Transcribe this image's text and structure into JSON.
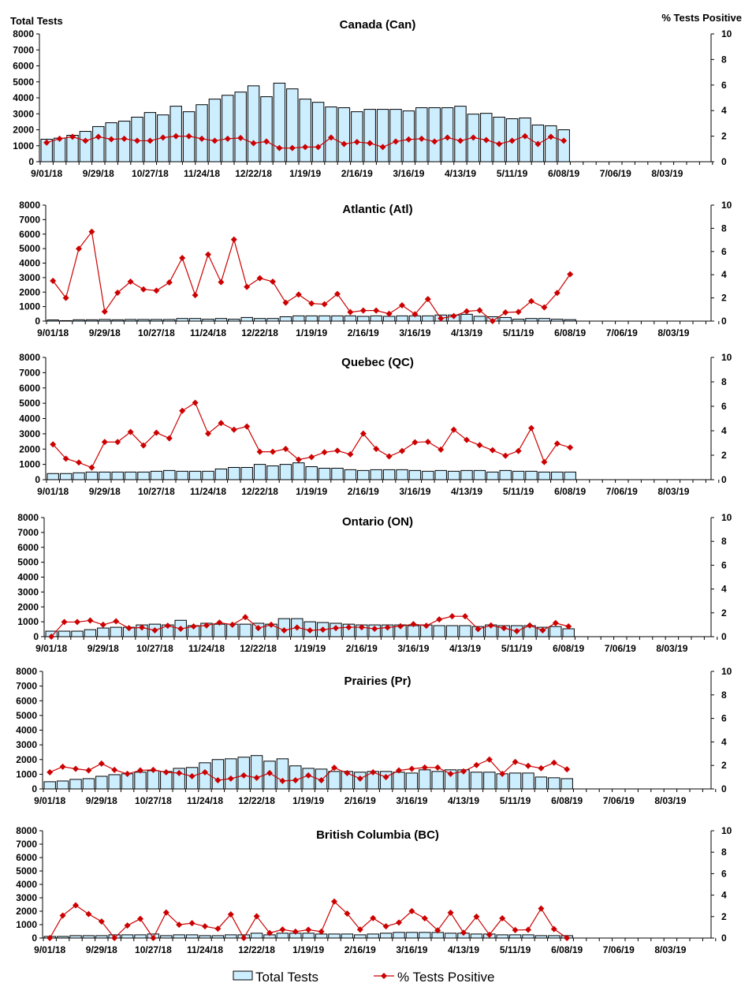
{
  "left_axis_title": "Total Tests",
  "right_axis_title": "% Tests Positive",
  "legend": {
    "bars": "Total Tests",
    "line": "% Tests Positive"
  },
  "colors": {
    "bar_fill": "#cceeff",
    "bar_stroke": "#000000",
    "line": "#cc0000"
  },
  "x_tick_labels": [
    "9/01/18",
    "9/29/18",
    "10/27/18",
    "11/24/18",
    "12/22/18",
    "1/19/19",
    "2/16/19",
    "3/16/19",
    "4/13/19",
    "5/11/19",
    "6/08/19",
    "7/06/19",
    "8/03/19"
  ],
  "weeks": [
    "9/01/18",
    "9/08/18",
    "9/15/18",
    "9/22/18",
    "9/29/18",
    "10/06/18",
    "10/13/18",
    "10/20/18",
    "10/27/18",
    "11/03/18",
    "11/10/18",
    "11/17/18",
    "11/24/18",
    "12/01/18",
    "12/08/18",
    "12/15/18",
    "12/22/18",
    "12/29/18",
    "1/05/19",
    "1/12/19",
    "1/19/19",
    "1/26/19",
    "2/02/19",
    "2/09/19",
    "2/16/19",
    "2/23/19",
    "3/02/19",
    "3/09/19",
    "3/16/19",
    "3/23/19",
    "3/30/19",
    "4/06/19",
    "4/13/19",
    "4/20/19",
    "4/27/19",
    "5/04/19",
    "5/11/19",
    "5/18/19",
    "5/25/19",
    "6/01/19",
    "6/08/19"
  ],
  "chart_data": [
    {
      "type": "bar+line",
      "title": "Canada (Can)",
      "ylim": [
        0,
        8000
      ],
      "ylim_right": [
        0,
        10
      ],
      "left_ticks": [
        "0",
        "1000",
        "2000",
        "3000",
        "4000",
        "5000",
        "6000",
        "7000",
        "8000"
      ],
      "right_ticks": [
        "0",
        "2",
        "4",
        "6",
        "8",
        "10"
      ],
      "series": [
        {
          "name": "Total Tests",
          "type": "bar",
          "values": [
            1410,
            1475,
            1655,
            1900,
            2200,
            2440,
            2540,
            2790,
            3080,
            2930,
            3475,
            3130,
            3570,
            3920,
            4160,
            4360,
            4750,
            4070,
            4920,
            4560,
            3920,
            3720,
            3430,
            3380,
            3130,
            3280,
            3280,
            3280,
            3180,
            3380,
            3380,
            3380,
            3475,
            2980,
            3030,
            2790,
            2690,
            2740,
            2300,
            2250,
            2000
          ]
        },
        {
          "name": "% Tests Positive",
          "type": "line",
          "values": [
            1.5,
            1.8,
            1.95,
            1.64,
            1.95,
            1.76,
            1.8,
            1.64,
            1.64,
            1.89,
            2.0,
            2.0,
            1.8,
            1.64,
            1.8,
            1.86,
            1.45,
            1.58,
            1.07,
            1.07,
            1.15,
            1.15,
            1.89,
            1.39,
            1.54,
            1.45,
            1.15,
            1.58,
            1.74,
            1.8,
            1.58,
            1.89,
            1.64,
            1.89,
            1.7,
            1.39,
            1.64,
            2.0,
            1.39,
            1.95,
            1.64
          ]
        }
      ]
    },
    {
      "type": "bar+line",
      "title": "Atlantic (Atl)",
      "ylim": [
        0,
        8000
      ],
      "ylim_right": [
        0,
        10
      ],
      "left_ticks": [
        "0",
        "1000",
        "2000",
        "3000",
        "4000",
        "5000",
        "6000",
        "7000",
        "8000"
      ],
      "right_ticks": [
        "0",
        "2",
        "4",
        "6",
        "8",
        "10"
      ],
      "series": [
        {
          "name": "Total Tests",
          "type": "bar",
          "values": [
            80,
            30,
            90,
            90,
            110,
            90,
            110,
            110,
            110,
            110,
            180,
            180,
            130,
            180,
            130,
            250,
            180,
            180,
            300,
            360,
            360,
            360,
            360,
            360,
            330,
            360,
            330,
            360,
            360,
            360,
            420,
            420,
            470,
            330,
            300,
            250,
            130,
            180,
            180,
            130,
            100
          ]
        },
        {
          "name": "% Tests Positive",
          "type": "line",
          "values": [
            3.47,
            2.0,
            6.24,
            7.7,
            0.82,
            2.45,
            3.4,
            2.74,
            2.63,
            3.33,
            5.44,
            2.24,
            5.74,
            3.36,
            7.03,
            2.95,
            3.7,
            3.4,
            1.59,
            2.29,
            1.52,
            1.45,
            2.34,
            0.77,
            0.91,
            0.91,
            0.63,
            1.36,
            0.59,
            1.9,
            0.23,
            0.43,
            0.84,
            0.93,
            0.0,
            0.75,
            0.79,
            1.72,
            1.18,
            2.43,
            4.04
          ]
        }
      ]
    },
    {
      "type": "bar+line",
      "title": "Quebec (QC)",
      "ylim": [
        0,
        8000
      ],
      "ylim_right": [
        0,
        10
      ],
      "left_ticks": [
        "0",
        "1000",
        "2000",
        "3000",
        "4000",
        "5000",
        "6000",
        "7000",
        "8000"
      ],
      "right_ticks": [
        "0",
        "2",
        "4",
        "6",
        "8",
        "10"
      ],
      "series": [
        {
          "name": "Total Tests",
          "type": "bar",
          "values": [
            400,
            400,
            450,
            500,
            500,
            500,
            500,
            500,
            550,
            600,
            550,
            550,
            550,
            700,
            800,
            800,
            1000,
            900,
            1000,
            1100,
            850,
            750,
            750,
            650,
            600,
            650,
            650,
            650,
            600,
            550,
            600,
            550,
            600,
            600,
            500,
            600,
            550,
            550,
            500,
            500,
            500
          ]
        },
        {
          "name": "% Tests Positive",
          "type": "line",
          "values": [
            2.89,
            1.72,
            1.4,
            0.99,
            3.08,
            3.08,
            3.9,
            2.8,
            3.84,
            3.38,
            5.63,
            6.29,
            3.77,
            4.63,
            4.09,
            4.35,
            2.28,
            2.28,
            2.52,
            1.64,
            1.85,
            2.24,
            2.37,
            2.07,
            3.77,
            2.52,
            1.9,
            2.35,
            3.06,
            3.1,
            2.46,
            4.09,
            3.25,
            2.82,
            2.41,
            1.96,
            2.35,
            4.22,
            1.44,
            2.95,
            2.63
          ]
        }
      ]
    },
    {
      "type": "bar+line",
      "title": "Ontario (ON)",
      "ylim": [
        0,
        8000
      ],
      "ylim_right": [
        0,
        10
      ],
      "left_ticks": [
        "0",
        "1000",
        "2000",
        "3000",
        "4000",
        "5000",
        "6000",
        "7000",
        "8000"
      ],
      "right_ticks": [
        "0",
        "2",
        "4",
        "6",
        "8",
        "10"
      ],
      "series": [
        {
          "name": "Total Tests",
          "type": "bar",
          "values": [
            370,
            370,
            370,
            470,
            580,
            630,
            630,
            790,
            840,
            790,
            1100,
            740,
            900,
            840,
            840,
            840,
            900,
            840,
            1210,
            1210,
            1000,
            950,
            900,
            840,
            790,
            790,
            790,
            790,
            740,
            790,
            740,
            740,
            740,
            680,
            790,
            740,
            740,
            740,
            630,
            680,
            530
          ]
        },
        {
          "name": "% Tests Positive",
          "type": "line",
          "values": [
            0.0,
            1.23,
            1.23,
            1.36,
            1.0,
            1.29,
            0.72,
            0.77,
            0.53,
            0.92,
            0.66,
            0.86,
            0.94,
            1.18,
            1.0,
            1.64,
            0.72,
            1.0,
            0.53,
            0.77,
            0.53,
            0.59,
            0.72,
            0.79,
            0.79,
            0.66,
            0.77,
            0.88,
            1.05,
            0.92,
            1.45,
            1.71,
            1.71,
            0.64,
            0.94,
            0.72,
            0.46,
            0.94,
            0.53,
            1.14,
            0.86
          ]
        }
      ]
    },
    {
      "type": "bar+line",
      "title": "Prairies (Pr)",
      "ylim": [
        0,
        8000
      ],
      "ylim_right": [
        0,
        10
      ],
      "left_ticks": [
        "0",
        "1000",
        "2000",
        "3000",
        "4000",
        "5000",
        "6000",
        "7000",
        "8000"
      ],
      "right_ticks": [
        "0",
        "2",
        "4",
        "6",
        "8",
        "10"
      ],
      "series": [
        {
          "name": "Total Tests",
          "type": "bar",
          "values": [
            490,
            540,
            650,
            700,
            860,
            970,
            1030,
            1140,
            1240,
            1190,
            1400,
            1460,
            1780,
            2000,
            2050,
            2160,
            2270,
            1890,
            2050,
            1570,
            1400,
            1350,
            1190,
            1190,
            1140,
            1190,
            1190,
            1140,
            1080,
            1300,
            1190,
            1300,
            1300,
            1140,
            1140,
            1030,
            1080,
            1080,
            810,
            760,
            700
          ]
        },
        {
          "name": "% Tests Positive",
          "type": "line",
          "values": [
            1.42,
            1.89,
            1.71,
            1.58,
            2.16,
            1.62,
            1.28,
            1.58,
            1.62,
            1.42,
            1.35,
            1.08,
            1.42,
            0.74,
            0.88,
            1.15,
            0.95,
            1.35,
            0.68,
            0.74,
            1.15,
            0.74,
            1.8,
            1.35,
            0.88,
            1.42,
            1.01,
            1.58,
            1.71,
            1.82,
            1.82,
            1.28,
            1.49,
            2.03,
            2.5,
            1.28,
            2.3,
            1.96,
            1.76,
            2.23,
            1.67
          ]
        }
      ]
    },
    {
      "type": "bar+line",
      "title": "British Columbia (BC)",
      "ylim": [
        0,
        8000
      ],
      "ylim_right": [
        0,
        10
      ],
      "left_ticks": [
        "0",
        "1000",
        "2000",
        "3000",
        "4000",
        "5000",
        "6000",
        "7000",
        "8000"
      ],
      "right_ticks": [
        "0",
        "2",
        "4",
        "6",
        "8",
        "10"
      ],
      "series": [
        {
          "name": "Total Tests",
          "type": "bar",
          "values": [
            120,
            120,
            180,
            180,
            180,
            240,
            240,
            240,
            300,
            180,
            240,
            240,
            180,
            180,
            240,
            240,
            360,
            240,
            360,
            360,
            360,
            300,
            300,
            300,
            240,
            300,
            360,
            420,
            420,
            420,
            420,
            360,
            360,
            300,
            300,
            240,
            240,
            240,
            180,
            180,
            180
          ]
        },
        {
          "name": "% Tests Positive",
          "type": "line",
          "values": [
            0.0,
            2.1,
            3.05,
            2.23,
            1.54,
            0.0,
            1.17,
            1.79,
            0.0,
            2.38,
            1.24,
            1.39,
            1.09,
            0.87,
            2.21,
            0.0,
            2.03,
            0.47,
            0.79,
            0.6,
            0.77,
            0.6,
            3.4,
            2.28,
            0.79,
            1.86,
            1.09,
            1.44,
            2.51,
            1.84,
            0.72,
            2.36,
            0.5,
            1.99,
            0.3,
            1.84,
            0.74,
            0.77,
            2.75,
            0.84,
            0.0
          ]
        }
      ]
    }
  ]
}
